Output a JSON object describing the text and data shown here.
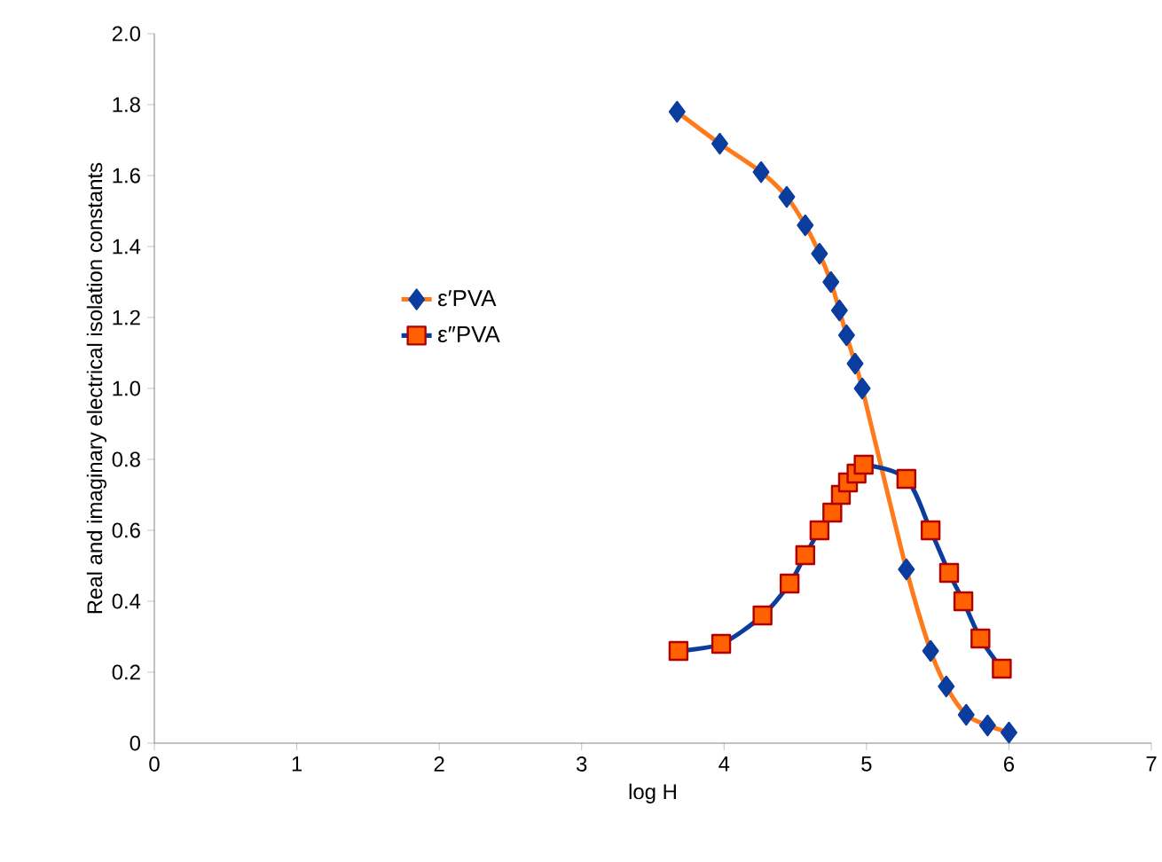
{
  "chart_data": {
    "type": "line",
    "xlabel": "log H",
    "ylabel": "Real and imaginary electrical isolation constants",
    "xlim": [
      0,
      7
    ],
    "xticks": [
      0,
      1,
      2,
      3,
      4,
      5,
      6,
      7
    ],
    "ylim": [
      0,
      2.0
    ],
    "yticks": [
      {
        "value": 0,
        "label": "0"
      },
      {
        "value": 0.2,
        "label": "0.2"
      },
      {
        "value": 0.4,
        "label": "0.4"
      },
      {
        "value": 0.6,
        "label": "0.6"
      },
      {
        "value": 0.8,
        "label": "0.8"
      },
      {
        "value": 1.0,
        "label": "1.0"
      },
      {
        "value": 1.2,
        "label": "1.2"
      },
      {
        "value": 1.4,
        "label": "1.4"
      },
      {
        "value": 1.6,
        "label": "1.6"
      },
      {
        "value": 1.8,
        "label": "1.8"
      },
      {
        "value": 2.0,
        "label": "2.0"
      }
    ],
    "grid": false,
    "legend": "left",
    "series": [
      {
        "name": "ε′PVA",
        "color": "#0a3d9e",
        "marker": "diamond",
        "x": [
          3.67,
          3.97,
          4.26,
          4.44,
          4.57,
          4.67,
          4.75,
          4.81,
          4.86,
          4.92,
          4.97,
          5.28,
          5.45,
          5.56,
          5.7,
          5.85,
          6.0
        ],
        "values": [
          1.78,
          1.69,
          1.61,
          1.54,
          1.46,
          1.38,
          1.3,
          1.22,
          1.15,
          1.07,
          1.0,
          0.49,
          0.26,
          0.16,
          0.08,
          0.05,
          0.03
        ]
      },
      {
        "name": "ε″PVA",
        "color": "#ff6000",
        "marker": "square",
        "x": [
          3.68,
          3.98,
          4.27,
          4.46,
          4.57,
          4.67,
          4.76,
          4.82,
          4.87,
          4.93,
          4.98,
          5.28,
          5.45,
          5.58,
          5.68,
          5.8,
          5.95
        ],
        "values": [
          0.26,
          0.28,
          0.36,
          0.45,
          0.53,
          0.6,
          0.65,
          0.7,
          0.735,
          0.76,
          0.785,
          0.745,
          0.6,
          0.48,
          0.4,
          0.295,
          0.21
        ]
      }
    ]
  }
}
